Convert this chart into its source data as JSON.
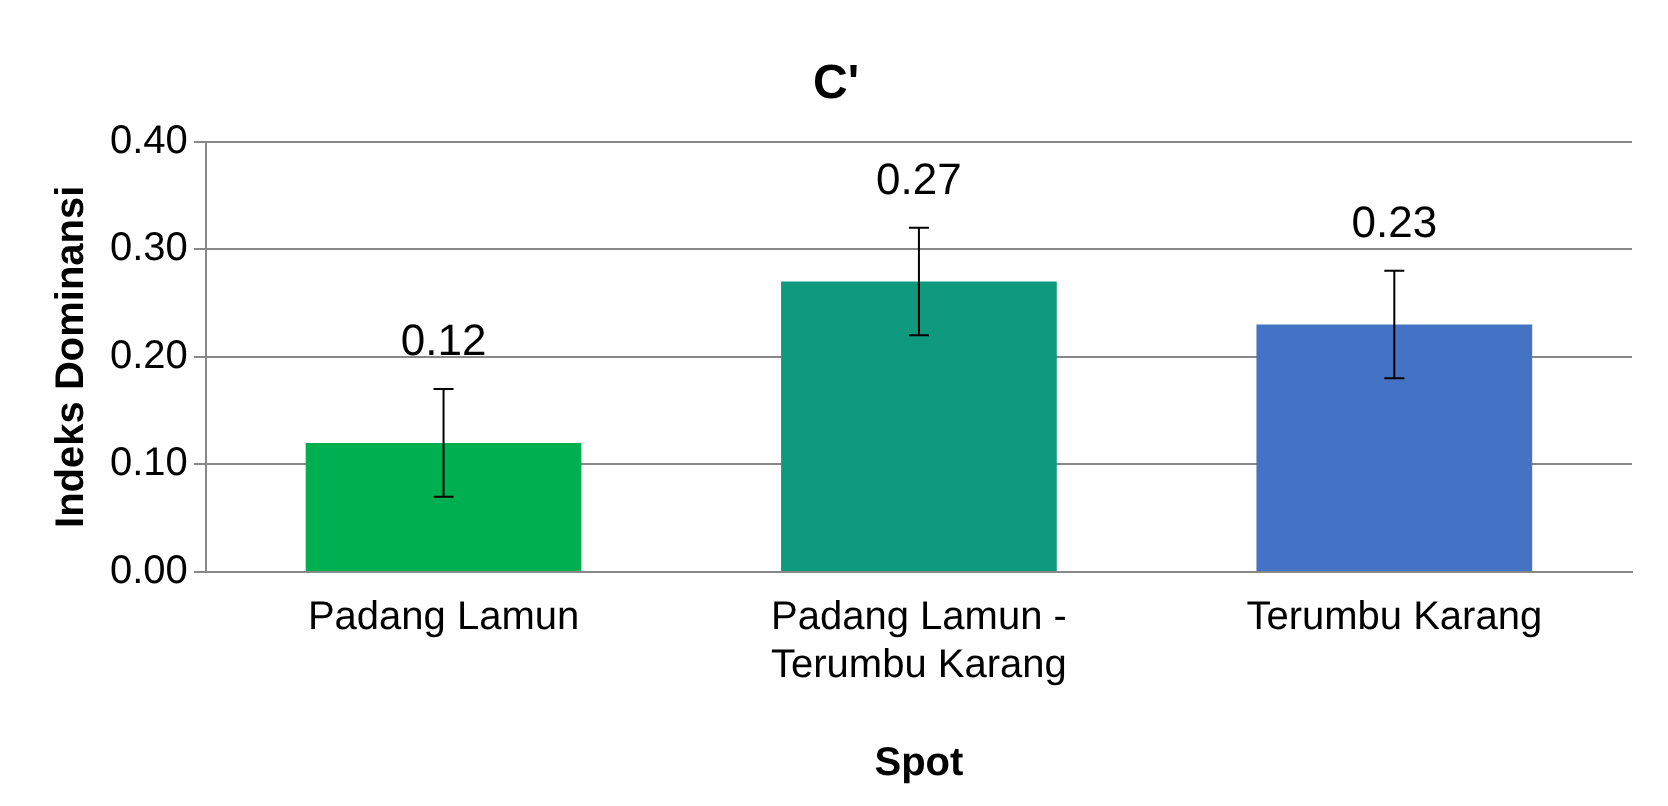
{
  "chart_data": {
    "type": "bar",
    "title": "C'",
    "xlabel": "Spot",
    "ylabel": "Indeks Dominansi",
    "categories": [
      "Padang Lamun",
      "Padang Lamun - Terumbu Karang",
      "Terumbu Karang"
    ],
    "values": [
      0.12,
      0.27,
      0.23
    ],
    "colors": [
      "#00b050",
      "#0f9a80",
      "#4472c4"
    ],
    "errors": [
      0.05,
      0.05,
      0.05
    ],
    "ylim": [
      0,
      0.4
    ],
    "yticks": [
      {
        "value": 0,
        "label": "0.00"
      },
      {
        "value": 0.1,
        "label": "0.10"
      },
      {
        "value": 0.2,
        "label": "0.20"
      },
      {
        "value": 0.3,
        "label": "0.30"
      },
      {
        "value": 0.4,
        "label": "0.40"
      }
    ],
    "grid": "y",
    "legend": false,
    "data_labels": true
  }
}
